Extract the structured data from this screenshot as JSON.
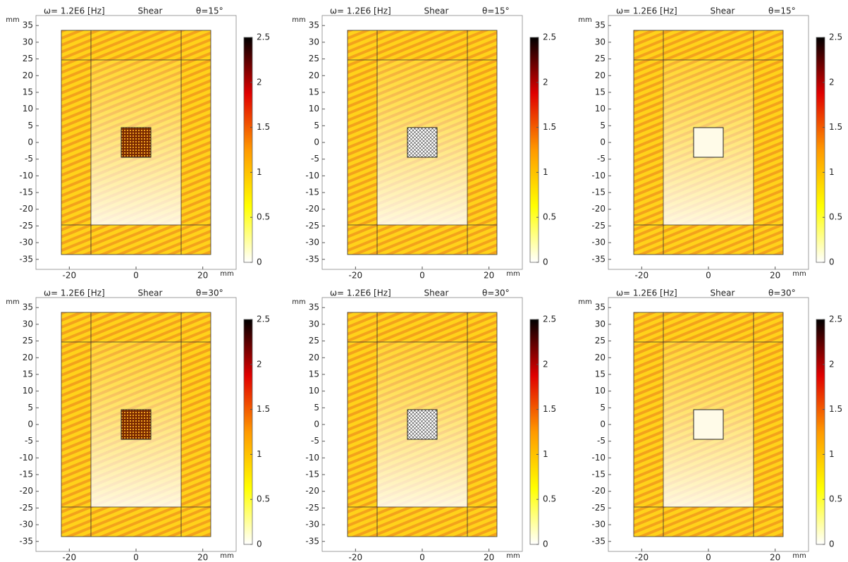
{
  "chart_data": [
    {
      "type": "heatmap",
      "frequency_label": "ω= 1.2E6 [Hz]",
      "wave_label": "Shear",
      "angle_label": "θ=15°",
      "x_unit": "mm",
      "y_unit": "mm",
      "xlim": [
        -30,
        30
      ],
      "ylim": [
        -38,
        38
      ],
      "xticks": [
        -20,
        0,
        20
      ],
      "yticks": [
        -35,
        -30,
        -25,
        -20,
        -15,
        -10,
        -5,
        0,
        5,
        10,
        15,
        20,
        25,
        30,
        35
      ],
      "clim": [
        0,
        2.5
      ],
      "cticks": [
        0,
        0.5,
        1,
        1.5,
        2,
        2.5
      ],
      "colormap": [
        "#ffffff",
        "#ffff00",
        "#ff9900",
        "#e00000",
        "#000000"
      ]
    },
    {
      "type": "heatmap",
      "frequency_label": "ω= 1.2E6 [Hz]",
      "wave_label": "Shear",
      "angle_label": "θ=15°",
      "x_unit": "mm",
      "y_unit": "mm",
      "xlim": [
        -30,
        30
      ],
      "ylim": [
        -38,
        38
      ],
      "xticks": [
        -20,
        0,
        20
      ],
      "yticks": [
        -35,
        -30,
        -25,
        -20,
        -15,
        -10,
        -5,
        0,
        5,
        10,
        15,
        20,
        25,
        30,
        35
      ],
      "clim": [
        0,
        2.5
      ],
      "cticks": [
        0,
        0.5,
        1,
        1.5,
        2,
        2.5
      ],
      "colormap": [
        "#ffffff",
        "#ffff00",
        "#ff9900",
        "#e00000",
        "#000000"
      ]
    },
    {
      "type": "heatmap",
      "frequency_label": "ω= 1.2E6 [Hz]",
      "wave_label": "Shear",
      "angle_label": "θ=15°",
      "x_unit": "mm",
      "y_unit": "mm",
      "xlim": [
        -30,
        30
      ],
      "ylim": [
        -38,
        38
      ],
      "xticks": [
        -20,
        0,
        20
      ],
      "yticks": [
        -35,
        -30,
        -25,
        -20,
        -15,
        -10,
        -5,
        0,
        5,
        10,
        15,
        20,
        25,
        30,
        35
      ],
      "clim": [
        0,
        2.5
      ],
      "cticks": [
        0,
        0.5,
        1,
        1.5,
        2,
        2.5
      ],
      "colormap": [
        "#ffffff",
        "#ffff00",
        "#ff9900",
        "#e00000",
        "#000000"
      ]
    },
    {
      "type": "heatmap",
      "frequency_label": "ω= 1.2E6 [Hz]",
      "wave_label": "Shear",
      "angle_label": "θ=30°",
      "x_unit": "mm",
      "y_unit": "mm",
      "xlim": [
        -30,
        30
      ],
      "ylim": [
        -38,
        38
      ],
      "xticks": [
        -20,
        0,
        20
      ],
      "yticks": [
        -35,
        -30,
        -25,
        -20,
        -15,
        -10,
        -5,
        0,
        5,
        10,
        15,
        20,
        25,
        30,
        35
      ],
      "clim": [
        0,
        2.5
      ],
      "cticks": [
        0,
        0.5,
        1,
        1.5,
        2,
        2.5
      ],
      "colormap": [
        "#ffffff",
        "#ffff00",
        "#ff9900",
        "#e00000",
        "#000000"
      ]
    },
    {
      "type": "heatmap",
      "frequency_label": "ω= 1.2E6 [Hz]",
      "wave_label": "Shear",
      "angle_label": "θ=30°",
      "x_unit": "mm",
      "y_unit": "mm",
      "xlim": [
        -30,
        30
      ],
      "ylim": [
        -38,
        38
      ],
      "xticks": [
        -20,
        0,
        20
      ],
      "yticks": [
        -35,
        -30,
        -25,
        -20,
        -15,
        -10,
        -5,
        0,
        5,
        10,
        15,
        20,
        25,
        30,
        35
      ],
      "clim": [
        0,
        2.5
      ],
      "cticks": [
        0,
        0.5,
        1,
        1.5,
        2,
        2.5
      ],
      "colormap": [
        "#ffffff",
        "#ffff00",
        "#ff9900",
        "#e00000",
        "#000000"
      ]
    },
    {
      "type": "heatmap",
      "frequency_label": "ω= 1.2E6 [Hz]",
      "wave_label": "Shear",
      "angle_label": "θ=30°",
      "x_unit": "mm",
      "y_unit": "mm",
      "xlim": [
        -30,
        30
      ],
      "ylim": [
        -38,
        38
      ],
      "xticks": [
        -20,
        0,
        20
      ],
      "yticks": [
        -35,
        -30,
        -25,
        -20,
        -15,
        -10,
        -5,
        0,
        5,
        10,
        15,
        20,
        25,
        30,
        35
      ],
      "clim": [
        0,
        2.5
      ],
      "cticks": [
        0,
        0.5,
        1,
        1.5,
        2,
        2.5
      ],
      "colormap": [
        "#ffffff",
        "#ffff00",
        "#ff9900",
        "#e00000",
        "#000000"
      ]
    }
  ]
}
